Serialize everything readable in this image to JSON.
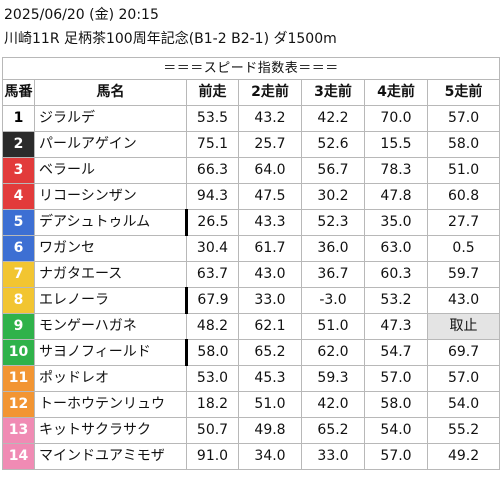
{
  "header": {
    "datetime": "2025/06/20 (金) 20:15",
    "race": "川崎11R 足柄茶100周年記念(B1-2 B2-1) ダ1500m"
  },
  "table": {
    "title": "＝＝＝スピード指数表＝＝＝",
    "columns": [
      "馬番",
      "馬名",
      "前走",
      "2走前",
      "3走前",
      "4走前",
      "5走前"
    ],
    "rows": [
      {
        "num": "1",
        "name": "ジラルデ",
        "v1": "53.5",
        "v2": "43.2",
        "v3": "42.2",
        "v4": "70.0",
        "v5": "57.0",
        "bg": "#ffffff",
        "fg": "#000000",
        "bar": false
      },
      {
        "num": "2",
        "name": "パールアゲイン",
        "v1": "75.1",
        "v2": "25.7",
        "v3": "52.6",
        "v4": "15.5",
        "v5": "58.0",
        "bg": "#2b2b2b",
        "fg": "#ffffff",
        "bar": false
      },
      {
        "num": "3",
        "name": "ベラール",
        "v1": "66.3",
        "v2": "64.0",
        "v3": "56.7",
        "v4": "78.3",
        "v5": "51.0",
        "bg": "#e23b3b",
        "fg": "#ffffff",
        "bar": false
      },
      {
        "num": "4",
        "name": "リコーシンザン",
        "v1": "94.3",
        "v2": "47.5",
        "v3": "30.2",
        "v4": "47.8",
        "v5": "60.8",
        "bg": "#e23b3b",
        "fg": "#ffffff",
        "bar": false
      },
      {
        "num": "5",
        "name": "デアシュトゥルム",
        "v1": "26.5",
        "v2": "43.3",
        "v3": "52.3",
        "v4": "35.0",
        "v5": "27.7",
        "bg": "#3d6fd3",
        "fg": "#ffffff",
        "bar": true
      },
      {
        "num": "6",
        "name": "ワガンセ",
        "v1": "30.4",
        "v2": "61.7",
        "v3": "36.0",
        "v4": "63.0",
        "v5": "0.5",
        "bg": "#3d6fd3",
        "fg": "#ffffff",
        "bar": false
      },
      {
        "num": "7",
        "name": "ナガタエース",
        "v1": "63.7",
        "v2": "43.0",
        "v3": "36.7",
        "v4": "60.3",
        "v5": "59.7",
        "bg": "#f2c531",
        "fg": "#ffffff",
        "bar": false
      },
      {
        "num": "8",
        "name": "エレノーラ",
        "v1": "67.9",
        "v2": "33.0",
        "v3": "-3.0",
        "v4": "53.2",
        "v5": "43.0",
        "bg": "#f2c531",
        "fg": "#ffffff",
        "bar": true
      },
      {
        "num": "9",
        "name": "モンゲーハガネ",
        "v1": "48.2",
        "v2": "62.1",
        "v3": "51.0",
        "v4": "47.3",
        "v5": "取止",
        "bg": "#2fb24a",
        "fg": "#ffffff",
        "bar": false,
        "v5_gray": true
      },
      {
        "num": "10",
        "name": "サヨノフィールド",
        "v1": "58.0",
        "v2": "65.2",
        "v3": "62.0",
        "v4": "54.7",
        "v5": "69.7",
        "bg": "#2fb24a",
        "fg": "#ffffff",
        "bar": true
      },
      {
        "num": "11",
        "name": "ポッドレオ",
        "v1": "53.0",
        "v2": "45.3",
        "v3": "59.3",
        "v4": "57.0",
        "v5": "57.0",
        "bg": "#f29533",
        "fg": "#ffffff",
        "bar": false
      },
      {
        "num": "12",
        "name": "トーホウテンリュウ",
        "v1": "18.2",
        "v2": "51.0",
        "v3": "42.0",
        "v4": "58.0",
        "v5": "54.0",
        "bg": "#f29533",
        "fg": "#ffffff",
        "bar": false
      },
      {
        "num": "13",
        "name": "キットサクラサク",
        "v1": "50.7",
        "v2": "49.8",
        "v3": "65.2",
        "v4": "54.0",
        "v5": "55.2",
        "bg": "#f08bb4",
        "fg": "#ffffff",
        "bar": false
      },
      {
        "num": "14",
        "name": "マインドユアミモザ",
        "v1": "91.0",
        "v2": "34.0",
        "v3": "33.0",
        "v4": "57.0",
        "v5": "49.2",
        "bg": "#f08bb4",
        "fg": "#ffffff",
        "bar": false
      }
    ]
  }
}
